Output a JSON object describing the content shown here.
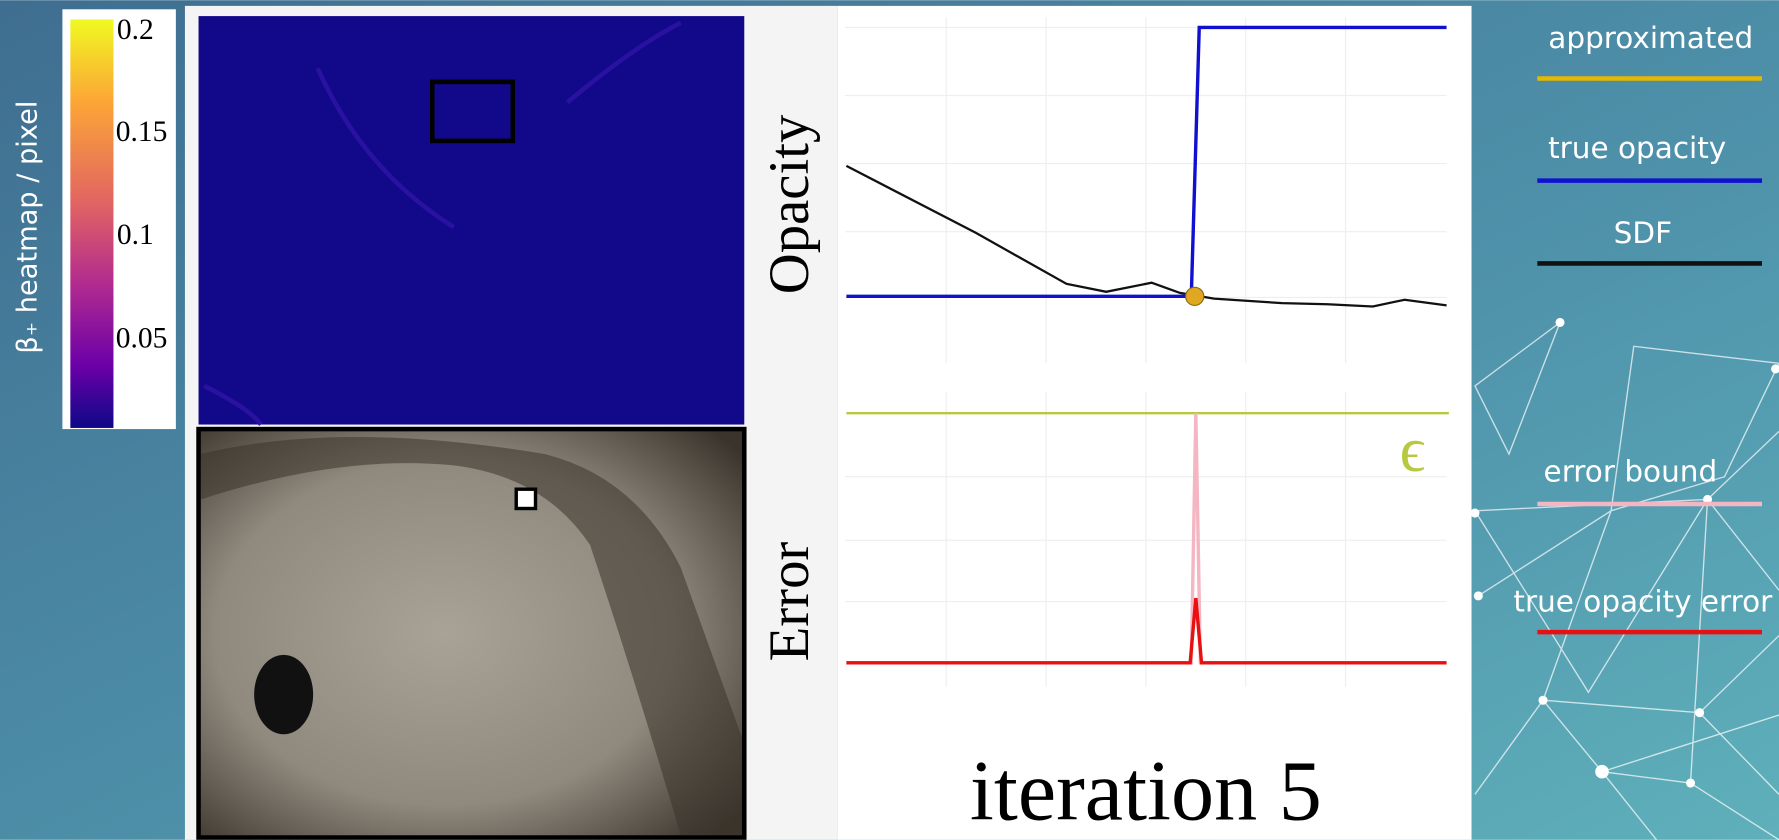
{
  "colorbar": {
    "label": "β₊ heatmap / pixel",
    "ticks": [
      "0.2",
      "0.15",
      "0.1",
      "0.05"
    ]
  },
  "opacity_plot": {
    "ylabel": "Opacity"
  },
  "error_plot": {
    "ylabel": "Error",
    "annotation": "ϵ"
  },
  "caption": "iteration 5",
  "legend": [
    {
      "label": "approximated",
      "color": "#e6b800"
    },
    {
      "label": "true opacity",
      "color": "#1010d0"
    },
    {
      "label": "SDF",
      "color": "#111111"
    },
    {
      "label": "error bound",
      "color": "#f4b6c2"
    },
    {
      "label": "true opacity error",
      "color": "#e81010"
    }
  ]
}
